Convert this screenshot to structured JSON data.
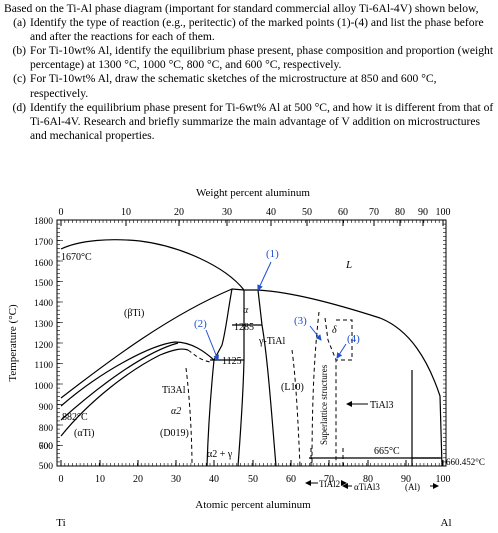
{
  "question": {
    "intro": "Based on the Ti-Al phase diagram (important for standard commercial alloy Ti-6Al-4V) shown below,",
    "items": [
      {
        "label": "(a)",
        "text": "Identify the type of reaction (e.g., peritectic) of the marked points (1)-(4) and list the phase before and after the reactions for each of them."
      },
      {
        "label": "(b)",
        "text": "For Ti-10wt% Al, identify the equilibrium phase present, phase composition and proportion (weight percentage) at 1300 °C, 1000 °C, 800 °C, and 600 °C, respectively."
      },
      {
        "label": "(c)",
        "text": "For Ti-10wt% Al, draw the schematic sketches of the microstructure at 850 and 600 °C, respectively."
      },
      {
        "label": "(d)",
        "text": "Identify the equilibrium phase present for Ti-6wt% Al at 500 °C, and how it is different from that of Ti-6Al-4V. Research and briefly summarize the main advantage of V addition on microstructures and mechanical properties."
      }
    ]
  },
  "diagram": {
    "top_axis_title": "Weight percent aluminum",
    "top_ticks": [
      "0",
      "10",
      "20",
      "30",
      "40",
      "50",
      "60",
      "70",
      "80",
      "90",
      "100"
    ],
    "bottom_axis_title": "Atomic percent aluminum",
    "bottom_ticks": [
      "0",
      "10",
      "20",
      "30",
      "40",
      "50",
      "60",
      "70",
      "80",
      "90",
      "100"
    ],
    "y_axis_title": "Temperature (°C)",
    "y_ticks": [
      "1800",
      "1700",
      "1600",
      "1500",
      "1400",
      "1300",
      "1200",
      "1100",
      "1000",
      "900",
      "800",
      "700",
      "600",
      "500"
    ],
    "end_left": "Ti",
    "end_right": "Al",
    "labels": {
      "t1670": "1670°C",
      "L": "L",
      "beta": "(βTi)",
      "alpha_top": "α",
      "m1": "(1)",
      "m2": "(2)",
      "m3": "(3)",
      "m4": "(4)",
      "t1285": "1285",
      "t1125": "1125",
      "gamma": "γ-TiAl",
      "delta": "δ",
      "ti3al": "Ti3Al",
      "alpha2": "α2",
      "d019": "(D019)",
      "l10": "(L10)",
      "t882": "882°C",
      "alphaTi": "(αTi)",
      "a2g": "α2 + γ",
      "superlattice": "Superlattice structures",
      "tial3": "TiAl3",
      "t665": "665°C",
      "t660": "660.452°C",
      "tial2": "TiAl2",
      "atial3": "αTiAl3",
      "al": "(Al)"
    },
    "accent_color": "#1f4fd1"
  }
}
